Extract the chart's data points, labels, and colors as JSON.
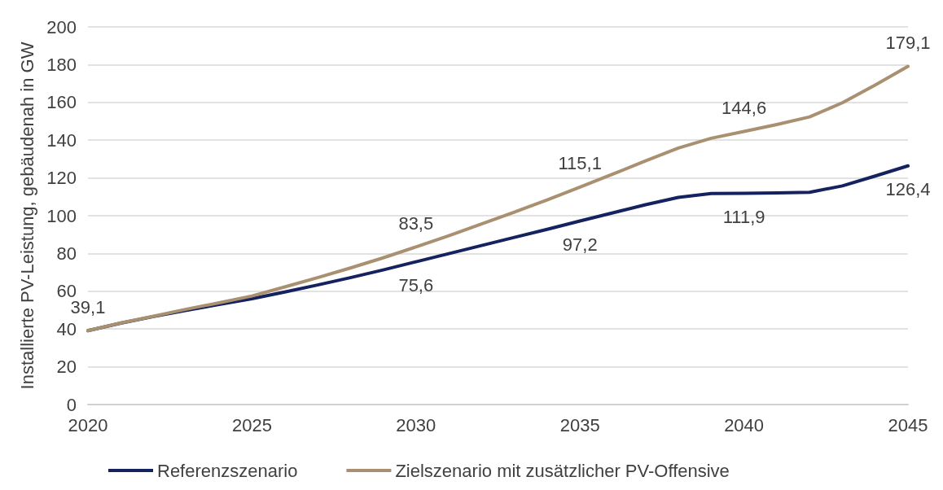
{
  "chart_data": {
    "type": "line",
    "ylabel": "Installierte PV-Leistung, gebäudenah in GW",
    "x": [
      2020,
      2021,
      2022,
      2023,
      2024,
      2025,
      2026,
      2027,
      2028,
      2029,
      2030,
      2031,
      2032,
      2033,
      2034,
      2035,
      2036,
      2037,
      2038,
      2039,
      2040,
      2041,
      2042,
      2043,
      2044,
      2045
    ],
    "series": [
      {
        "name": "Referenzszenario",
        "color": "#142260",
        "values": [
          39.1,
          43.1,
          46.6,
          49.9,
          53.0,
          56.0,
          59.6,
          63.3,
          67.2,
          71.3,
          75.6,
          79.9,
          84.2,
          88.5,
          92.8,
          97.2,
          101.5,
          105.8,
          109.7,
          111.7,
          111.9,
          112.1,
          112.4,
          115.8,
          121.0,
          126.4
        ],
        "value_labels": [
          null,
          null,
          null,
          null,
          null,
          null,
          null,
          null,
          null,
          null,
          "75,6",
          null,
          null,
          null,
          null,
          "97,2",
          null,
          null,
          null,
          null,
          "111,9",
          null,
          null,
          null,
          null,
          "126,4"
        ]
      },
      {
        "name": "Zielszenario mit zusätzlicher PV-Offensive",
        "color": "#a89070",
        "values": [
          39.1,
          43.2,
          46.8,
          50.5,
          53.9,
          57.5,
          62.3,
          67.2,
          72.3,
          77.7,
          83.5,
          89.4,
          95.6,
          101.9,
          108.4,
          115.1,
          122.0,
          129.0,
          135.8,
          141.0,
          144.6,
          148.3,
          152.3,
          159.8,
          169.2,
          179.1
        ],
        "value_labels": [
          "39,1",
          null,
          null,
          null,
          null,
          null,
          null,
          null,
          null,
          null,
          "83,5",
          null,
          null,
          null,
          null,
          "115,1",
          null,
          null,
          null,
          null,
          "144,6",
          null,
          null,
          null,
          null,
          "179,1"
        ]
      }
    ],
    "xlim": [
      2020,
      2045
    ],
    "xticks": [
      2020,
      2025,
      2030,
      2035,
      2040,
      2045
    ],
    "ylim": [
      0,
      200
    ],
    "yticks": [
      0,
      20,
      40,
      60,
      80,
      100,
      120,
      140,
      160,
      180,
      200
    ],
    "grid": "y",
    "legend": "bottom",
    "marker": "none",
    "line_style": "solid"
  }
}
